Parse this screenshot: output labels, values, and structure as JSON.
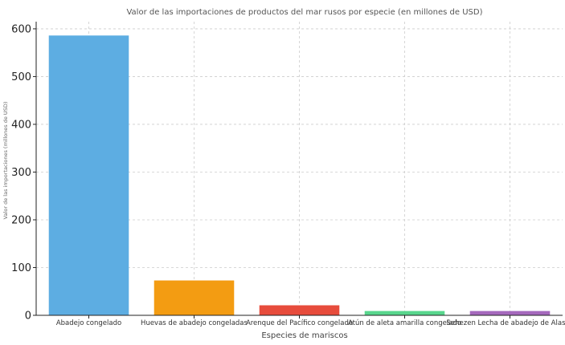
{
  "chart_data": {
    "type": "bar",
    "title": "Valor de las importaciones de productos del mar rusos por especie (en millones de USD)",
    "xlabel": "Especies de mariscos",
    "ylabel": "Valor de las importaciones (millones de USD)",
    "categories": [
      "Abadejo congelado",
      "Huevas de abadejo congeladas",
      "Arenque del Pacífico congelado",
      "Atún de aleta amarilla congelado",
      "Sehezen Lecha de abadejo de Alaska"
    ],
    "values": [
      586,
      73,
      21,
      9,
      9
    ],
    "colors": [
      "#5DADE2",
      "#F39C12",
      "#E74C3C",
      "#58D68D",
      "#A569BD"
    ],
    "ylim": [
      0,
      615
    ],
    "yticks": [
      0,
      100,
      200,
      300,
      400,
      500,
      600
    ],
    "grid": true,
    "legend": "none"
  }
}
